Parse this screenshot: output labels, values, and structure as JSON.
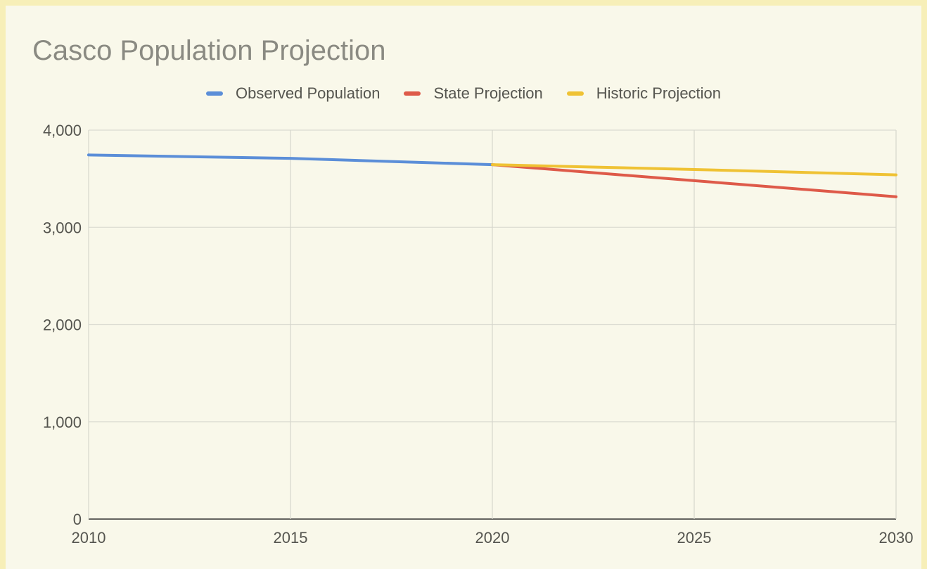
{
  "chart_data": {
    "type": "line",
    "title": "Casco Population Projection",
    "x": [
      2010,
      2015,
      2020,
      2025,
      2030
    ],
    "x_ticks": [
      "2010",
      "2015",
      "2020",
      "2025",
      "2030"
    ],
    "y_ticks": [
      "0",
      "1,000",
      "2,000",
      "3,000",
      "4,000"
    ],
    "y_tick_values": [
      0,
      1000,
      2000,
      3000,
      4000
    ],
    "xlim": [
      2010,
      2030
    ],
    "ylim": [
      0,
      4000
    ],
    "grid": true,
    "legend_position": "top-center",
    "series": [
      {
        "name": "Observed Population",
        "color": "#5b8ed8",
        "points": [
          [
            2010,
            3745
          ],
          [
            2015,
            3710
          ],
          [
            2020,
            3645
          ]
        ]
      },
      {
        "name": "State Projection",
        "color": "#de5a49",
        "points": [
          [
            2020,
            3645
          ],
          [
            2025,
            3480
          ],
          [
            2030,
            3315
          ]
        ]
      },
      {
        "name": "Historic Projection",
        "color": "#efc234",
        "points": [
          [
            2020,
            3645
          ],
          [
            2025,
            3595
          ],
          [
            2030,
            3540
          ]
        ]
      }
    ]
  }
}
